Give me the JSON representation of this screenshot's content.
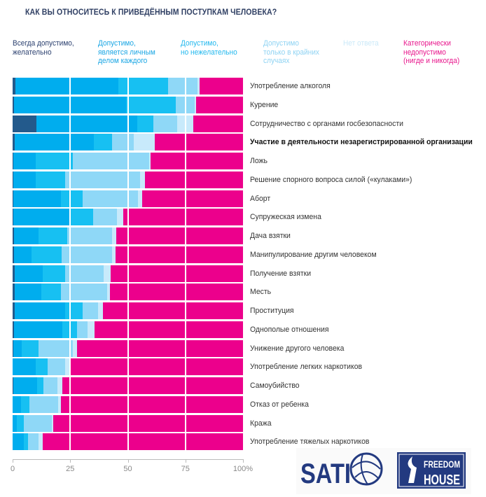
{
  "chart_data": {
    "type": "bar",
    "orientation": "horizontal-stacked",
    "title": "КАК ВЫ ОТНОСИТЕСЬ К ПРИВЕДЁННЫМ ПОСТУПКАМ ЧЕЛОВЕКА?",
    "xlabel": "",
    "ylabel": "",
    "xlim": [
      0,
      100
    ],
    "x_ticks": [
      "0",
      "25",
      "50",
      "75",
      "100%"
    ],
    "x_tick_values": [
      0,
      25,
      50,
      75,
      100
    ],
    "legend_placement": "top",
    "series": [
      {
        "name": "Всегда допустимо,\nжелательно",
        "color": "#235a8c",
        "legend_color": "#2a3f6e",
        "values": [
          1.2,
          0.6,
          10.3,
          0.9,
          0.4,
          0.4,
          0.4,
          0.4,
          0.6,
          0.6,
          0.9,
          0.9,
          0.9,
          0.6,
          0.3,
          0,
          0.3,
          0,
          0,
          0
        ]
      },
      {
        "name": "Допустимо,\nявляется личным\nделом каждого",
        "color": "#00adee",
        "legend_color": "#1aa6e4",
        "values": [
          44.7,
          48.6,
          43.8,
          34.4,
          9.6,
          9.6,
          20.6,
          24.5,
          10.6,
          7.6,
          12.2,
          11.6,
          21.9,
          21.0,
          3.7,
          10.0,
          10.3,
          3.6,
          1.8,
          4.9
        ]
      },
      {
        "name": "Допустимо,\nно нежелательно",
        "color": "#17c0f2",
        "legend_color": "#22b8ee",
        "values": [
          21.6,
          21.6,
          7.0,
          7.9,
          16.1,
          12.8,
          9.4,
          10.1,
          12.5,
          13.1,
          9.7,
          8.5,
          7.6,
          6.4,
          7.2,
          5.2,
          2.8,
          3.7,
          3.1,
          1.8
        ]
      },
      {
        "name": "Допустимо\nтолько в крайних\nслучаях",
        "color": "#8fd8f7",
        "legend_color": "#8fd3f3",
        "values": [
          12.7,
          8.2,
          10.3,
          9.4,
          33.2,
          32.5,
          24.0,
          10.3,
          19.5,
          21.9,
          16.7,
          20.0,
          6.7,
          4.5,
          14.9,
          7.6,
          6.1,
          12.5,
          12.1,
          4.5
        ]
      },
      {
        "name": "Нет ответа",
        "color": "#c8eafb",
        "legend_color": "#cbe9f8",
        "values": [
          1.0,
          0.6,
          7.0,
          9.1,
          0.6,
          2.1,
          1.8,
          2.7,
          1.8,
          1.5,
          3.1,
          1.2,
          2.1,
          3.1,
          1.9,
          1.8,
          2.1,
          1.2,
          0.6,
          1.9
        ]
      },
      {
        "name": "Категорически\nнедопустимо\n(нигде и никогда)",
        "color": "#ec008c",
        "legend_color": "#e8168c",
        "values": [
          18.8,
          20.4,
          21.6,
          38.3,
          40.1,
          42.6,
          43.8,
          52.0,
          55.0,
          55.3,
          57.4,
          57.8,
          60.8,
          64.4,
          72.0,
          75.4,
          78.4,
          79.0,
          82.4,
          86.9
        ]
      }
    ],
    "categories": [
      "Употребление алкоголя",
      "Курение",
      "Сотрудничество с органами госбезопасности",
      "Участие в деятельности незарегистрированной организации",
      "Ложь",
      "Решение спорного вопроса силой («кулаками»)",
      "Аборт",
      "Супружеская измена",
      "Дача взятки",
      "Манипулирование другим человеком",
      "Получение взятки",
      "Месть",
      "Проституция",
      "Однополые отношения",
      "Унижение другого человека",
      "Употребление легких наркотиков",
      "Самоубийство",
      "Отказ от ребенка",
      "Кража",
      "Употребление тяжелых наркотиков"
    ],
    "highlighted_category": "Участие в деятельности незарегистрированной организации"
  },
  "logos": [
    "SATIO",
    "FREEDOM HOUSE"
  ]
}
